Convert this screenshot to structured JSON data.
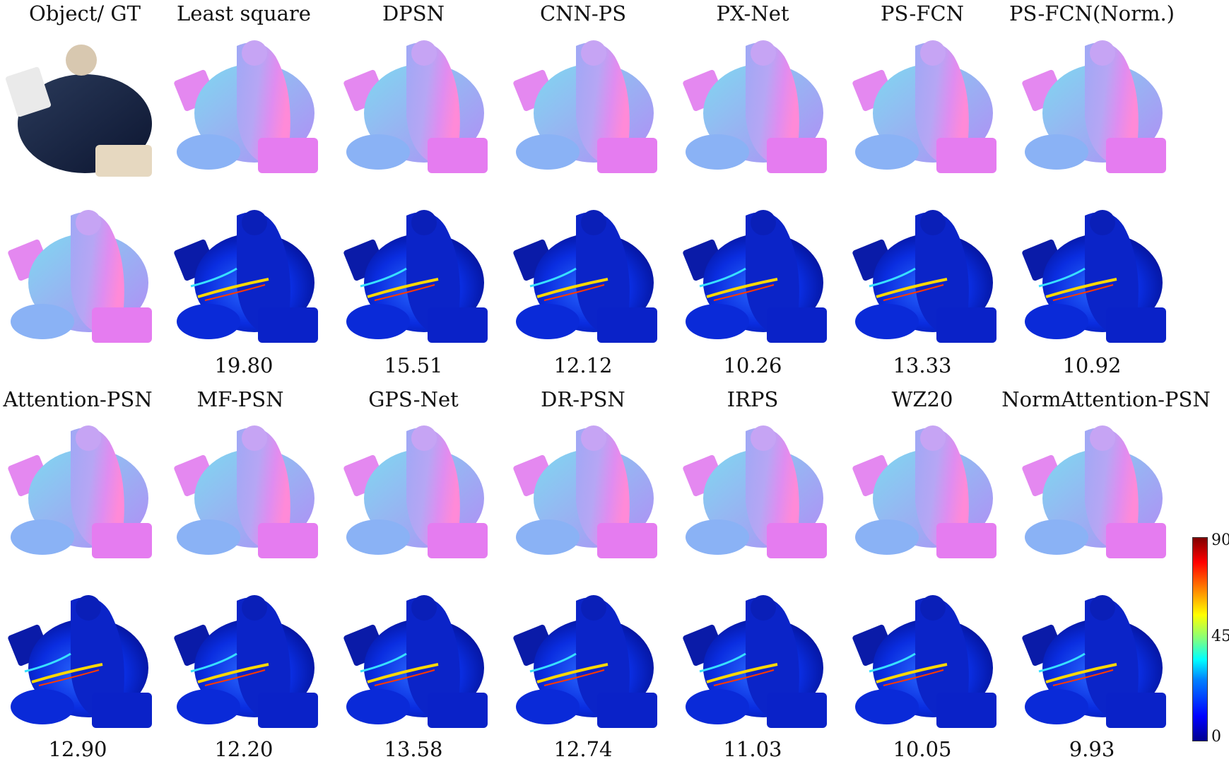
{
  "row1_labels": [
    "Object/ GT",
    "Least square",
    "DPSN",
    "CNN-PS",
    "PX-Net",
    "PS-FCN",
    "PS-FCN(Norm.)"
  ],
  "row1_scores": [
    "",
    "19.80",
    "15.51",
    "12.12",
    "10.26",
    "13.33",
    "10.92"
  ],
  "row2_labels": [
    "Attention-PSN",
    "MF-PSN",
    "GPS-Net",
    "DR-PSN",
    "IRPS",
    "WZ20",
    "NormAttention-PSN"
  ],
  "row2_scores": [
    "12.90",
    "12.20",
    "13.58",
    "12.74",
    "11.03",
    "10.05",
    "9.93"
  ],
  "colorbar": {
    "max": "90",
    "mid": "45",
    "min": "0"
  },
  "colors": {
    "normal_pink": "#e68cf0",
    "normal_blue": "#8ca8f5",
    "normal_cyan": "#7fe8e0",
    "error_blue": "#0a1fd9"
  }
}
